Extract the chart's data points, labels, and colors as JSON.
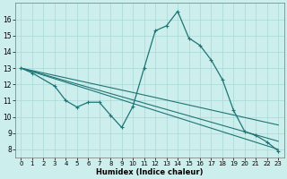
{
  "xlabel": "Humidex (Indice chaleur)",
  "background_color": "#cceeed",
  "line_color": "#1e7575",
  "grid_color": "#aad8d5",
  "xlim": [
    -0.5,
    23.5
  ],
  "ylim": [
    7.5,
    17.0
  ],
  "xticks": [
    0,
    1,
    2,
    3,
    4,
    5,
    6,
    7,
    8,
    9,
    10,
    11,
    12,
    13,
    14,
    15,
    16,
    17,
    18,
    19,
    20,
    21,
    22,
    23
  ],
  "yticks": [
    8,
    9,
    10,
    11,
    12,
    13,
    14,
    15,
    16
  ],
  "series_main": {
    "x": [
      0,
      1,
      3,
      4,
      5,
      6,
      7,
      8,
      9,
      10,
      11,
      12,
      13,
      14,
      15,
      16,
      17,
      18,
      19,
      20,
      21,
      22,
      23
    ],
    "y": [
      13.0,
      12.7,
      11.9,
      11.0,
      10.6,
      10.9,
      10.9,
      10.1,
      9.35,
      10.65,
      13.0,
      15.3,
      15.6,
      16.5,
      14.85,
      14.4,
      13.5,
      12.3,
      10.4,
      9.1,
      8.85,
      8.45,
      7.9
    ]
  },
  "series_lines": [
    {
      "x": [
        0,
        23
      ],
      "y": [
        13.0,
        8.0
      ]
    },
    {
      "x": [
        0,
        23
      ],
      "y": [
        13.0,
        8.5
      ]
    },
    {
      "x": [
        0,
        10,
        23
      ],
      "y": [
        13.0,
        11.5,
        9.5
      ]
    }
  ]
}
